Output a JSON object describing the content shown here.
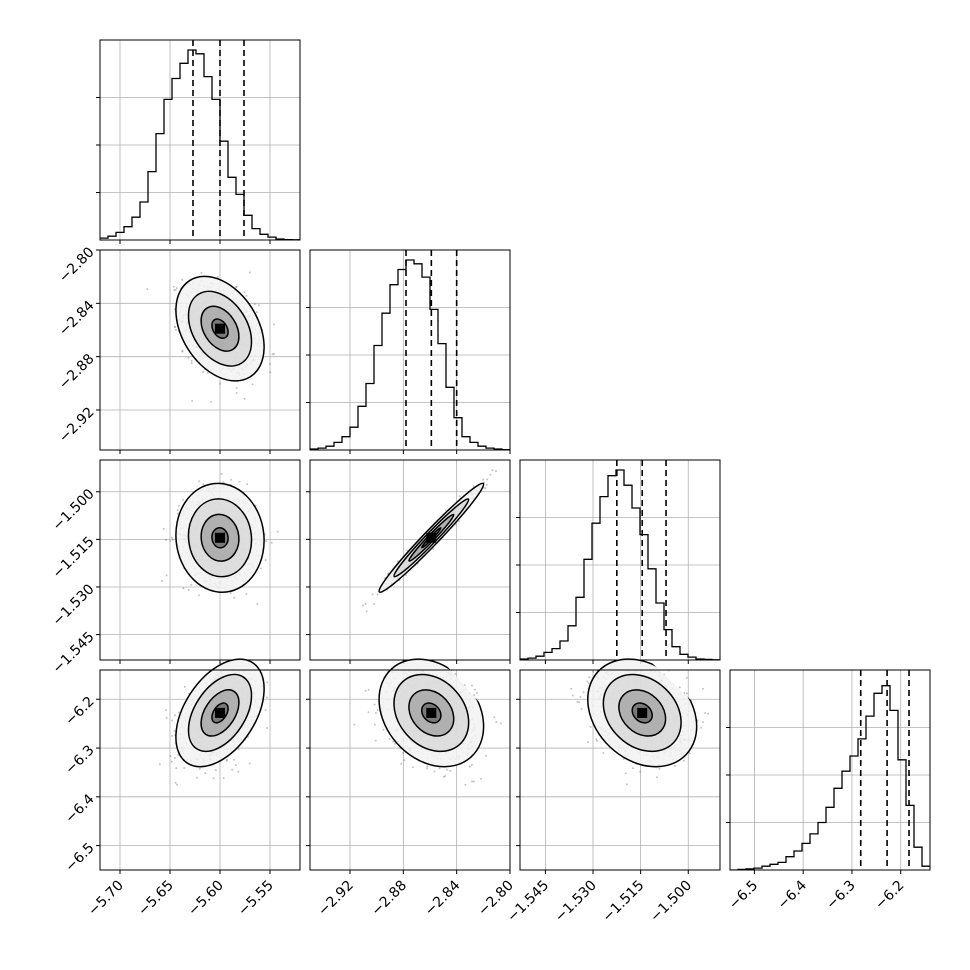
{
  "chart_data": {
    "type": "corner",
    "parameters": [
      {
        "range": [
          -5.72,
          -5.52
        ],
        "ticks": [
          -5.7,
          -5.65,
          -5.6,
          -5.55
        ],
        "tick_labels": [
          "−5.70",
          "−5.65",
          "−5.60",
          "−5.55"
        ],
        "quantiles": [
          -5.627,
          -5.6,
          -5.576
        ],
        "hist": [
          0.01,
          0.02,
          0.04,
          0.07,
          0.12,
          0.2,
          0.36,
          0.56,
          0.74,
          0.85,
          0.93,
          1.0,
          0.98,
          0.86,
          0.74,
          0.52,
          0.33,
          0.24,
          0.13,
          0.06,
          0.03,
          0.015,
          0.005,
          0.002,
          0.001
        ]
      },
      {
        "range": [
          -2.95,
          -2.8
        ],
        "ticks": [
          -2.92,
          -2.88,
          -2.84,
          -2.8
        ],
        "tick_labels": [
          "−2.92",
          "−2.88",
          "−2.84",
          "−2.80"
        ],
        "quantiles": [
          -2.878,
          -2.859,
          -2.84
        ],
        "hist": [
          0.005,
          0.01,
          0.02,
          0.04,
          0.07,
          0.12,
          0.23,
          0.35,
          0.55,
          0.72,
          0.87,
          0.95,
          1.0,
          0.98,
          0.91,
          0.74,
          0.56,
          0.33,
          0.17,
          0.07,
          0.04,
          0.02,
          0.01,
          0.005,
          0.002
        ]
      },
      {
        "range": [
          -1.553,
          -1.49
        ],
        "ticks": [
          -1.545,
          -1.53,
          -1.515,
          -1.5
        ],
        "tick_labels": [
          "−1.545",
          "−1.530",
          "−1.515",
          "−1.500"
        ],
        "quantiles": [
          -1.5225,
          -1.5145,
          -1.507
        ],
        "hist": [
          0.005,
          0.01,
          0.02,
          0.04,
          0.06,
          0.1,
          0.18,
          0.33,
          0.53,
          0.72,
          0.86,
          0.97,
          1.0,
          0.92,
          0.8,
          0.66,
          0.48,
          0.3,
          0.16,
          0.07,
          0.03,
          0.015,
          0.005,
          0.003,
          0.001
        ]
      },
      {
        "range": [
          -6.55,
          -6.14
        ],
        "ticks": [
          -6.5,
          -6.4,
          -6.3,
          -6.2
        ],
        "tick_labels": [
          "−6.5",
          "−6.4",
          "−6.3",
          "−6.2"
        ],
        "quantiles": [
          -6.282,
          -6.228,
          -6.183
        ],
        "hist": [
          0.0,
          0.003,
          0.006,
          0.01,
          0.02,
          0.03,
          0.04,
          0.07,
          0.1,
          0.14,
          0.19,
          0.25,
          0.33,
          0.43,
          0.52,
          0.6,
          0.69,
          0.81,
          0.93,
          0.97,
          0.84,
          0.58,
          0.34,
          0.12,
          0.02
        ]
      }
    ],
    "correlations": [
      [
        1,
        -0.35,
        -0.05,
        0.45
      ],
      [
        -0.35,
        1,
        0.98,
        -0.25
      ],
      [
        -0.05,
        0.98,
        1,
        -0.25
      ],
      [
        0.45,
        -0.25,
        -0.25,
        1
      ]
    ],
    "spreads": [
      0.018,
      0.016,
      0.007,
      0.045
    ],
    "grid": true
  }
}
